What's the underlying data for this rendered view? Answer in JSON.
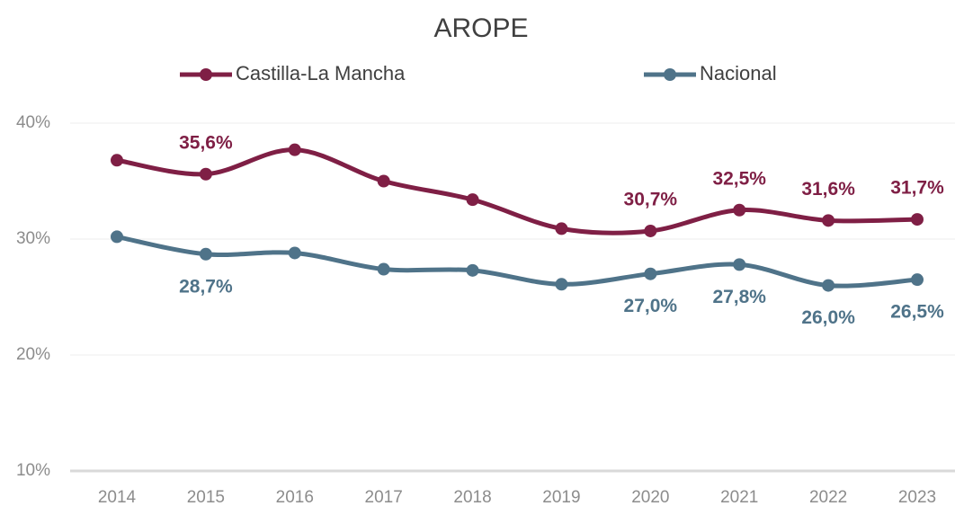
{
  "chart_data": {
    "type": "line",
    "title": "AROPE",
    "categories": [
      "2014",
      "2015",
      "2016",
      "2017",
      "2018",
      "2019",
      "2020",
      "2021",
      "2022",
      "2023"
    ],
    "series": [
      {
        "name": "Castilla-La Mancha",
        "color": "#7f1f45",
        "values": [
          36.8,
          35.6,
          37.7,
          35.0,
          33.4,
          30.9,
          30.7,
          32.5,
          31.6,
          31.7
        ],
        "value_labels": [
          null,
          "35,6%",
          null,
          null,
          null,
          null,
          "30,7%",
          "32,5%",
          "31,6%",
          "31,7%"
        ]
      },
      {
        "name": "Nacional",
        "color": "#4f7389",
        "values": [
          30.2,
          28.7,
          28.8,
          27.4,
          27.3,
          26.1,
          27.0,
          27.8,
          26.0,
          26.5
        ],
        "value_labels": [
          null,
          "28,7%",
          null,
          null,
          null,
          null,
          "27,0%",
          "27,8%",
          "26,0%",
          "26,5%"
        ]
      }
    ],
    "ylim": [
      10,
      40
    ],
    "yticks": [
      {
        "value": 10,
        "label": "10%"
      },
      {
        "value": 20,
        "label": "20%"
      },
      {
        "value": 30,
        "label": "30%"
      },
      {
        "value": 40,
        "label": "40%"
      }
    ],
    "grid": true,
    "legend": "top"
  }
}
